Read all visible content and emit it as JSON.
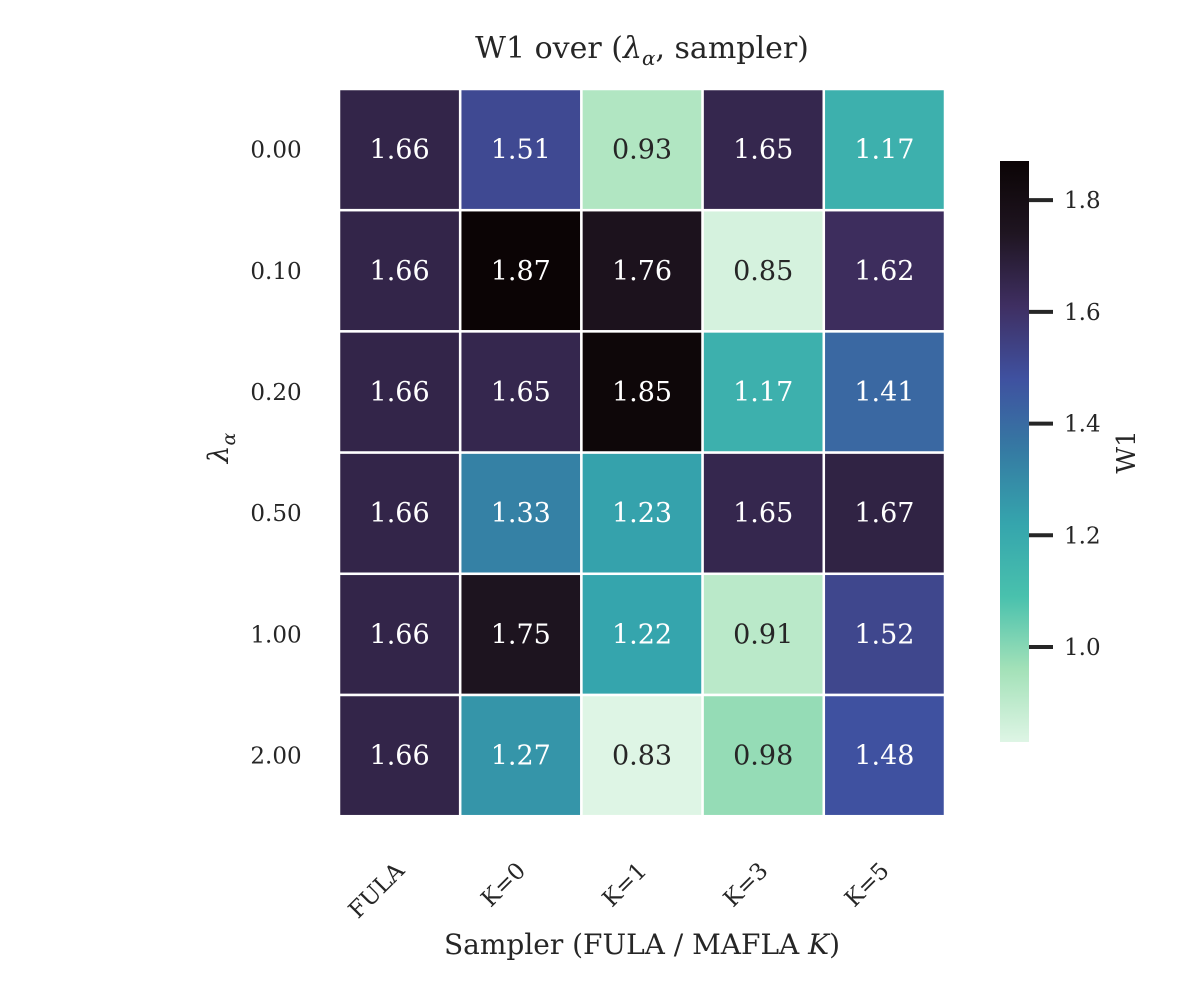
{
  "chart_data": {
    "type": "heatmap",
    "title_prefix": "W1 over (",
    "title_symbol": "λ",
    "title_subscript": "α",
    "title_suffix": ", sampler)",
    "ylabel_symbol": "λ",
    "ylabel_subscript": "α",
    "xlabel_prefix": "Sampler (FULA / MAFLA ",
    "xlabel_italic": "K",
    "xlabel_suffix": ")",
    "x_categories": [
      "FULA",
      "K=0",
      "K=1",
      "K=3",
      "K=5"
    ],
    "y_categories": [
      "0.00",
      "0.10",
      "0.20",
      "0.50",
      "1.00",
      "2.00"
    ],
    "values": [
      [
        1.66,
        1.51,
        0.93,
        1.65,
        1.17
      ],
      [
        1.66,
        1.87,
        1.76,
        0.85,
        1.62
      ],
      [
        1.66,
        1.65,
        1.85,
        1.17,
        1.41
      ],
      [
        1.66,
        1.33,
        1.23,
        1.65,
        1.67
      ],
      [
        1.66,
        1.75,
        1.22,
        0.91,
        1.52
      ],
      [
        1.66,
        1.27,
        0.83,
        0.98,
        1.48
      ]
    ],
    "cell_labels": [
      [
        "1.66",
        "1.51",
        "0.93",
        "1.65",
        "1.17"
      ],
      [
        "1.66",
        "1.87",
        "1.76",
        "0.85",
        "1.62"
      ],
      [
        "1.66",
        "1.65",
        "1.85",
        "1.17",
        "1.41"
      ],
      [
        "1.66",
        "1.33",
        "1.23",
        "1.65",
        "1.67"
      ],
      [
        "1.66",
        "1.75",
        "1.22",
        "0.91",
        "1.52"
      ],
      [
        "1.66",
        "1.27",
        "0.83",
        "0.98",
        "1.48"
      ]
    ],
    "colorbar": {
      "label": "W1",
      "vmin": 0.83,
      "vmax": 1.87,
      "ticks": [
        1.0,
        1.2,
        1.4,
        1.6,
        1.8
      ],
      "tick_labels": [
        "1.0",
        "1.2",
        "1.4",
        "1.6",
        "1.8"
      ]
    },
    "colormap": "mako_r",
    "colormap_stops": [
      "#def5e5",
      "#a3e1b8",
      "#49c1ad",
      "#35a5ad",
      "#357ba3",
      "#3f51a0",
      "#3f2f62",
      "#1f1521",
      "#0b0405"
    ]
  }
}
